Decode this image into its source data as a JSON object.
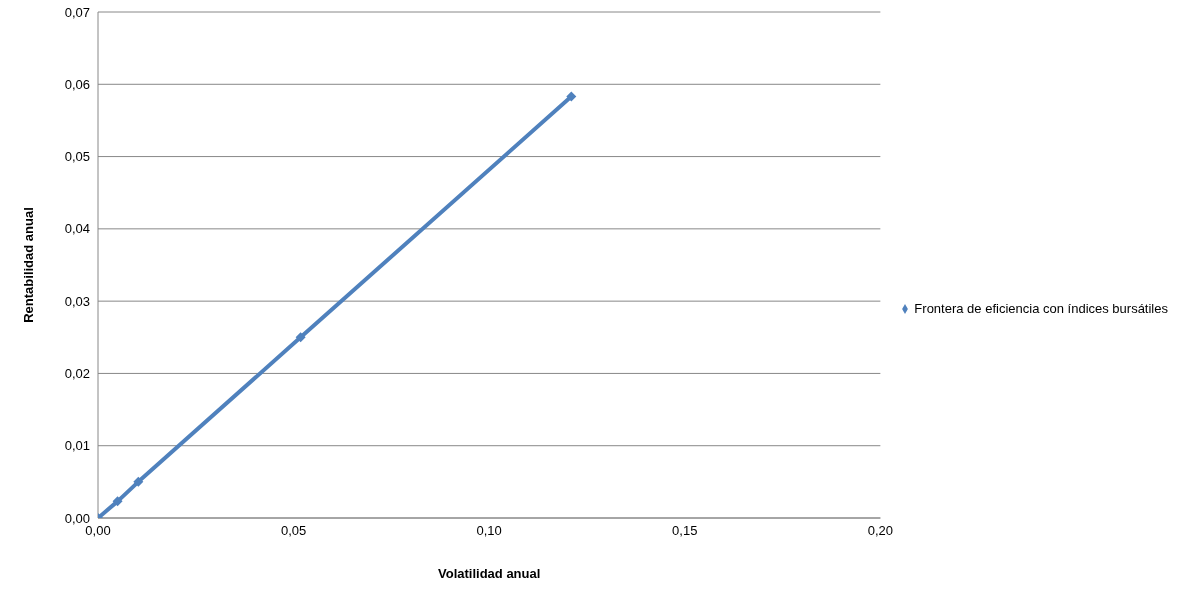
{
  "chart_data": {
    "type": "line",
    "xlabel": "Volatilidad anual",
    "ylabel": "Rentabilidad anual",
    "x": [
      0,
      0.005,
      0.0103,
      0.0518,
      0.121
    ],
    "series": [
      {
        "name": "Frontera de eficiencia con índices bursátiles",
        "color": "#4f81bd",
        "values": [
          0,
          0.0023,
          0.005,
          0.025,
          0.0583
        ]
      }
    ],
    "xlim": [
      0,
      0.2
    ],
    "xticks": [
      {
        "value": 0,
        "label": "0,00"
      },
      {
        "value": 0.05,
        "label": "0,05"
      },
      {
        "value": 0.1,
        "label": "0,10"
      },
      {
        "value": 0.15,
        "label": "0,15"
      },
      {
        "value": 0.2,
        "label": "0,20"
      }
    ],
    "ylim": [
      0,
      0.07
    ],
    "yticks": [
      {
        "value": 0,
        "label": "0,00"
      },
      {
        "value": 0.01,
        "label": "0,01"
      },
      {
        "value": 0.02,
        "label": "0,02"
      },
      {
        "value": 0.03,
        "label": "0,03"
      },
      {
        "value": 0.04,
        "label": "0,04"
      },
      {
        "value": 0.05,
        "label": "0,05"
      },
      {
        "value": 0.06,
        "label": "0,06"
      },
      {
        "value": 0.07,
        "label": "0,07"
      }
    ],
    "grid": "y",
    "legend": "right",
    "marker": "diamond",
    "line_style": "solid"
  }
}
